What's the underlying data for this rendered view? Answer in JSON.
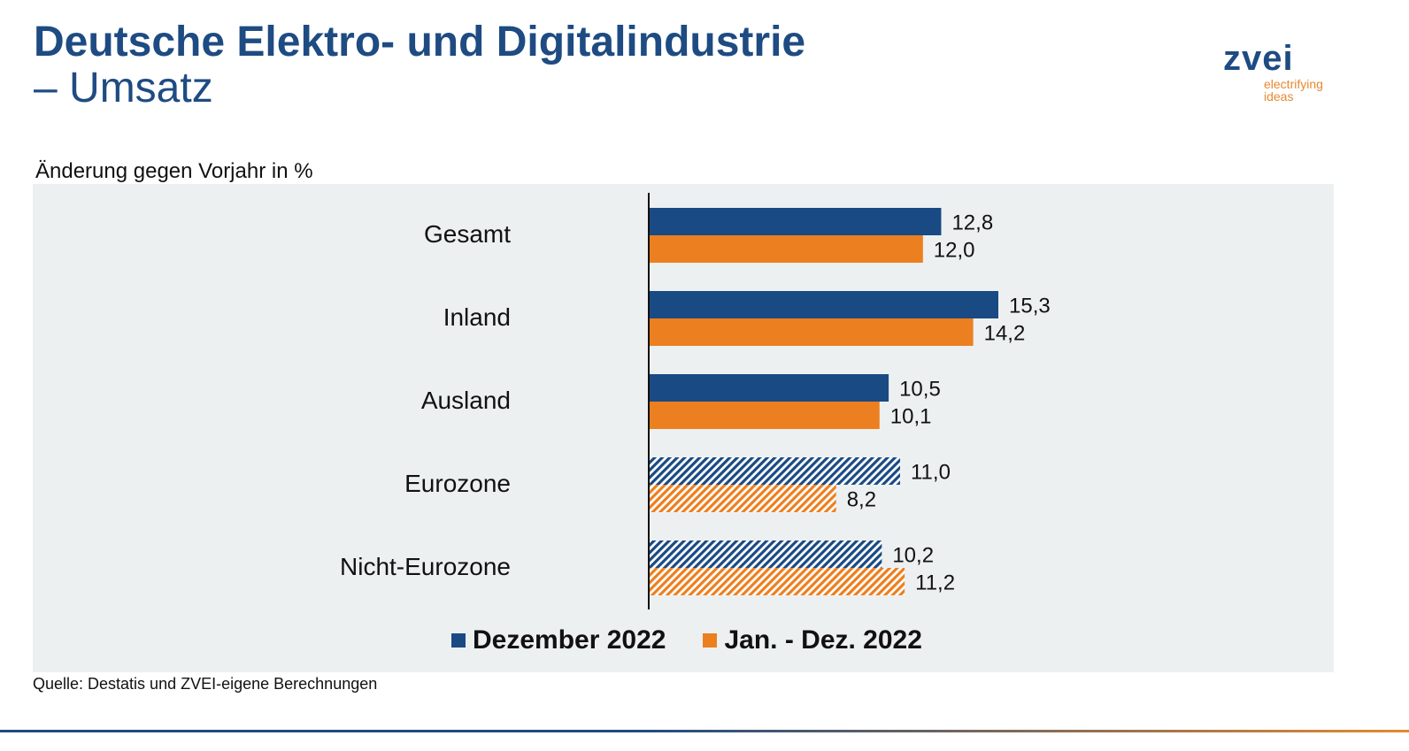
{
  "header": {
    "title_line1": "Deutsche Elektro- und Digitalindustrie",
    "title_line2": "– Umsatz"
  },
  "logo": {
    "name": "zvei",
    "tagline_line1": "electrifying",
    "tagline_line2": "ideas"
  },
  "subtitle": "Änderung gegen Vorjahr in %",
  "source": "Quelle: Destatis und ZVEI-eigene Berechnungen",
  "colors": {
    "navy": "#1a4a83",
    "orange": "#ec7f1f",
    "title": "#1e4b82"
  },
  "chart_data": {
    "type": "bar",
    "orientation": "horizontal",
    "categories": [
      "Gesamt",
      "Inland",
      "Ausland",
      "Eurozone",
      "Nicht-Eurozone"
    ],
    "hatched_categories": [
      "Eurozone",
      "Nicht-Eurozone"
    ],
    "series": [
      {
        "name": "Dezember 2022",
        "values": [
          12.8,
          15.3,
          10.5,
          11.0,
          10.2
        ],
        "labels": [
          "12,8",
          "15,3",
          "10,5",
          "11,0",
          "10,2"
        ],
        "color": "#1a4a83"
      },
      {
        "name": "Jan. - Dez. 2022",
        "values": [
          12.0,
          14.2,
          10.1,
          8.2,
          11.2
        ],
        "labels": [
          "12,0",
          "14,2",
          "10,1",
          "8,2",
          "11,2"
        ],
        "color": "#ec7f1f"
      }
    ],
    "xlim": [
      0,
      15.3
    ],
    "grid": false,
    "legend_position": "bottom"
  }
}
